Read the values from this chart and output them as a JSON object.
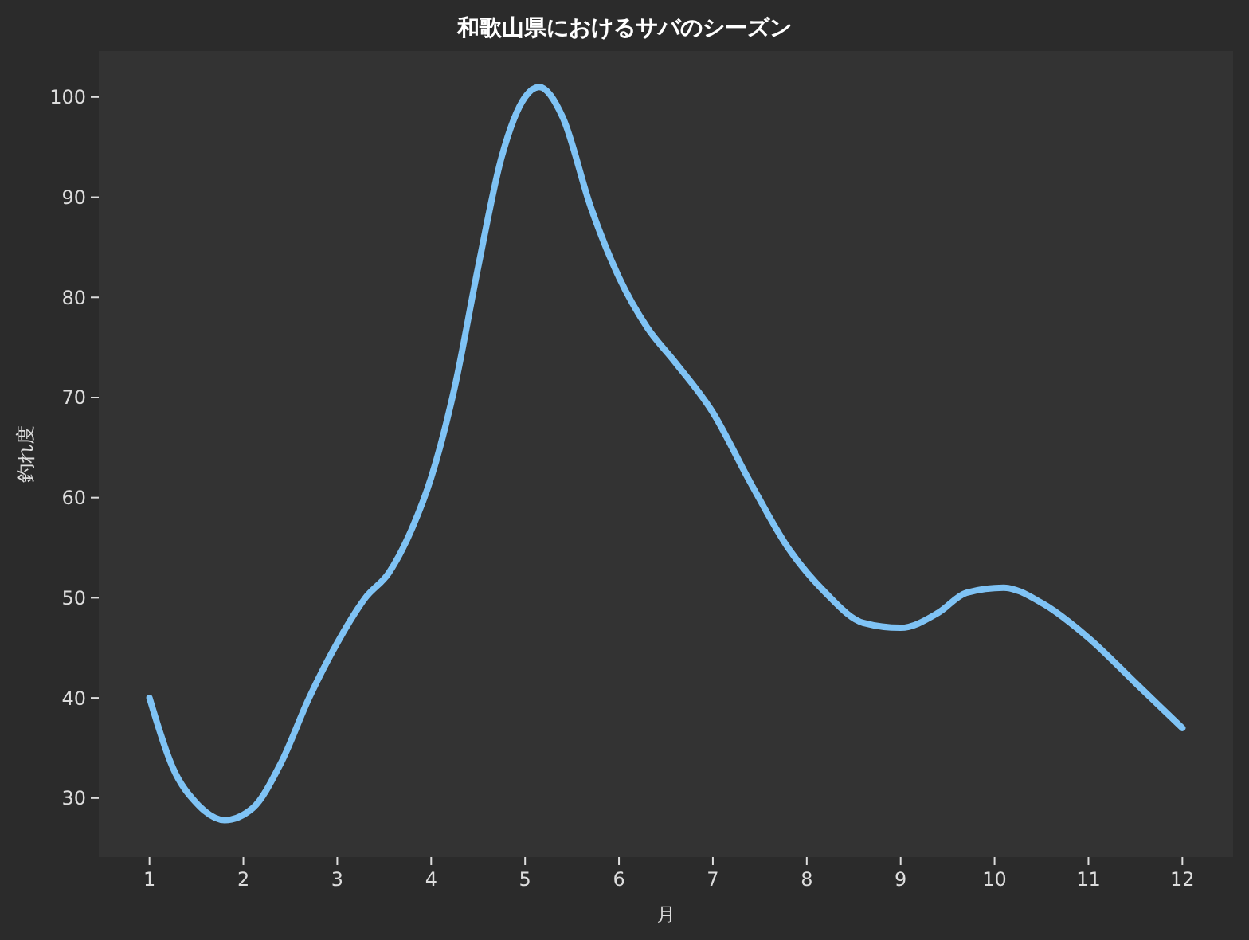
{
  "chart_data": {
    "type": "line",
    "title": "和歌山県におけるサバのシーズン",
    "xlabel": "月",
    "ylabel": "釣れ度",
    "xlim": [
      0.46,
      12.54
    ],
    "xticks": [
      1,
      2,
      3,
      4,
      5,
      6,
      7,
      8,
      9,
      10,
      11,
      12
    ],
    "ylim": [
      24.1,
      104.6
    ],
    "yticks": [
      30,
      40,
      50,
      60,
      70,
      80,
      90,
      100
    ],
    "grid": false,
    "series": [
      {
        "color": "#7fc3f5",
        "x": [
          1,
          1.25,
          1.5,
          1.8,
          2.1,
          2.4,
          2.7,
          3,
          3.3,
          3.55,
          3.8,
          4,
          4.25,
          4.5,
          4.75,
          5,
          5.15,
          5.4,
          5.7,
          6,
          6.3,
          6.6,
          7,
          7.4,
          7.8,
          8.2,
          8.6,
          9,
          9.4,
          9.7,
          10.1,
          10.5,
          11,
          11.5,
          12
        ],
        "values": [
          40,
          33,
          29.5,
          27.8,
          29,
          33.5,
          40,
          45.5,
          50,
          52.5,
          57,
          62,
          71,
          83,
          94,
          100,
          101,
          98,
          89,
          82,
          77,
          73.5,
          68.5,
          61.5,
          55,
          50.5,
          47.5,
          47,
          48.5,
          50.5,
          51,
          49.5,
          46,
          41.5,
          37
        ]
      }
    ]
  }
}
